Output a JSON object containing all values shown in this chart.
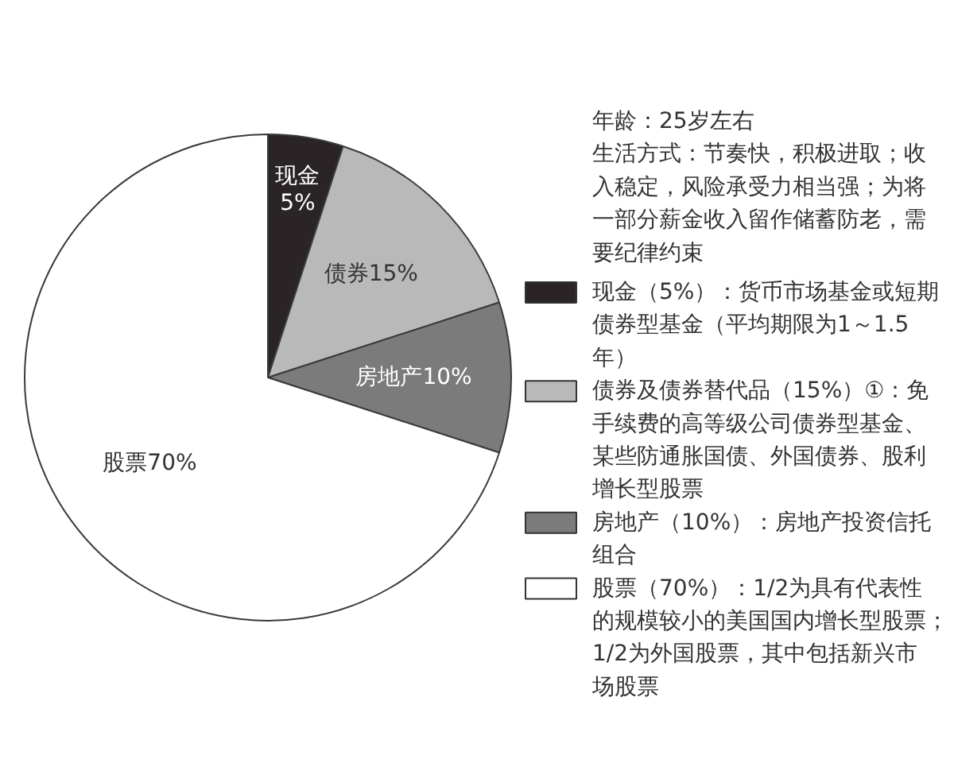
{
  "chart_data": {
    "type": "pie",
    "categories": [
      "现金（5%）：货币市场基金或短期债券型基金（平均期限为1～1.5年）",
      "债券及债券替代品（15%）①：免手续费的高等级公司债券型基金、某些防通胀国债、外国债券、股利增长型股票",
      "房地产（10%）：房地产投资信托组合",
      "股票（70%）：1/2为具有代表性的规模较小的美国国内增长型股票；1/2为外国股票，其中包括新兴市场股票"
    ],
    "values": [
      5,
      15,
      10,
      70
    ],
    "colors": [
      "#2a2426",
      "#b9b9b9",
      "#7b7b7b",
      "#ffffff"
    ],
    "value_labels": [
      "现金 5%",
      "债券15%",
      "房地产10%",
      "股票70%"
    ],
    "legend": "right",
    "annotations": [
      "年龄：25岁左右",
      "生活方式：节奏快，积极进取；收入稳定，风险承受力相当强；为将一部分薪金收入留作储蓄防老，需要纪律约束"
    ]
  }
}
